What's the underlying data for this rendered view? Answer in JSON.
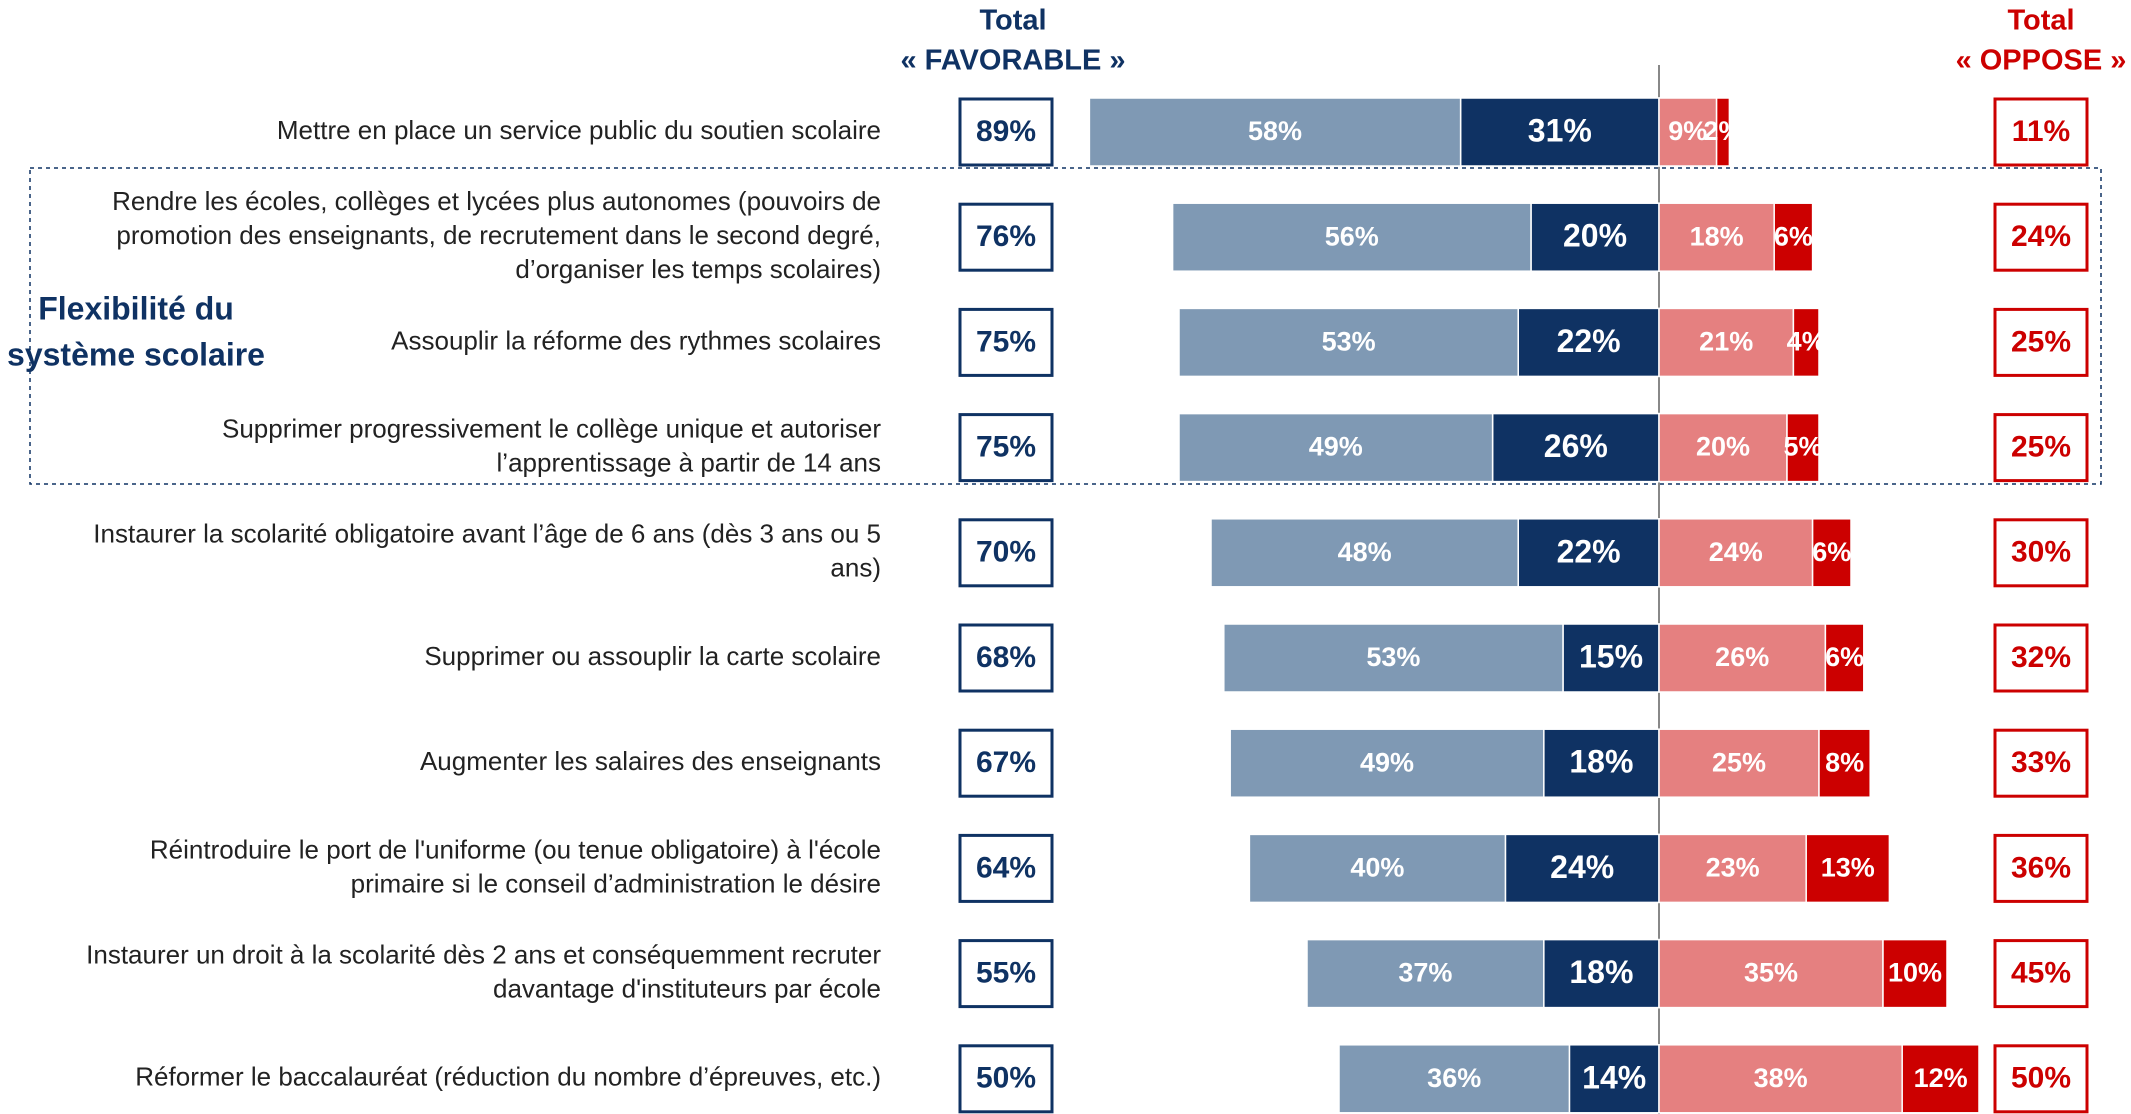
{
  "chart_data": {
    "type": "diverging-bar",
    "group_label": [
      "Flexibilité du",
      "système scolaire"
    ],
    "total_favorable_title": [
      "Total",
      "« FAVORABLE »"
    ],
    "total_opposed_title": [
      "Total",
      "« OPPOSE »"
    ],
    "categories": [
      [
        "Mettre en place un service public du soutien scolaire"
      ],
      [
        "Rendre les écoles, collèges et lycées plus autonomes (pouvoirs de",
        "promotion des enseignants, de recrutement dans le second degré,",
        "d’organiser les temps scolaires)"
      ],
      [
        "Assouplir la réforme des rythmes scolaires"
      ],
      [
        "Supprimer progressivement le collège unique et autoriser",
        "l’apprentissage à partir de 14 ans"
      ],
      [
        "Instaurer la scolarité obligatoire avant l’âge de 6 ans (dès 3 ans ou 5",
        "ans)"
      ],
      [
        "Supprimer ou assouplir la carte scolaire"
      ],
      [
        "Augmenter les salaires des enseignants"
      ],
      [
        "Réintroduire le port de l'uniforme (ou tenue obligatoire) à l'école",
        "primaire si le conseil d’administration le désire"
      ],
      [
        "Instaurer un droit à la scolarité dès 2 ans et conséquemment recruter",
        "davantage d'instituteurs par école"
      ],
      [
        "Réformer le baccalauréat (réduction du nombre d’épreuves, etc.)"
      ]
    ],
    "series": [
      {
        "color": "#0f3263",
        "side": "left",
        "values": [
          31,
          20,
          22,
          26,
          22,
          15,
          18,
          24,
          18,
          14
        ],
        "value_labels": [
          "31%",
          "20%",
          "22%",
          "26%",
          "22%",
          "15%",
          "18%",
          "24%",
          "18%",
          "14%"
        ]
      },
      {
        "color": "#7f99b4",
        "side": "left",
        "values": [
          58,
          56,
          53,
          49,
          48,
          53,
          49,
          40,
          37,
          36
        ],
        "value_labels": [
          "58%",
          "56%",
          "53%",
          "49%",
          "48%",
          "53%",
          "49%",
          "40%",
          "37%",
          "36%"
        ]
      },
      {
        "color": "#e58080",
        "side": "right",
        "values": [
          9,
          18,
          21,
          20,
          24,
          26,
          25,
          23,
          35,
          38
        ],
        "value_labels": [
          "9%",
          "18%",
          "21%",
          "20%",
          "24%",
          "26%",
          "25%",
          "23%",
          "35%",
          "38%"
        ]
      },
      {
        "color": "#cc0000",
        "side": "right",
        "values": [
          2,
          6,
          4,
          5,
          6,
          6,
          8,
          13,
          10,
          12
        ],
        "value_labels": [
          "2%",
          "6%",
          "4%",
          "5%",
          "6%",
          "6%",
          "8%",
          "13%",
          "10%",
          "12%"
        ]
      }
    ],
    "total_favorable": {
      "color": "#0f3263",
      "values": [
        89,
        76,
        75,
        75,
        70,
        68,
        67,
        64,
        55,
        50
      ],
      "value_labels": [
        "89%",
        "76%",
        "75%",
        "75%",
        "70%",
        "68%",
        "67%",
        "64%",
        "55%",
        "50%"
      ]
    },
    "total_opposed": {
      "color": "#cc0000",
      "values": [
        11,
        24,
        25,
        25,
        30,
        32,
        33,
        36,
        45,
        50
      ],
      "value_labels": [
        "11%",
        "24%",
        "25%",
        "25%",
        "30%",
        "32%",
        "33%",
        "36%",
        "45%",
        "50%"
      ]
    }
  }
}
